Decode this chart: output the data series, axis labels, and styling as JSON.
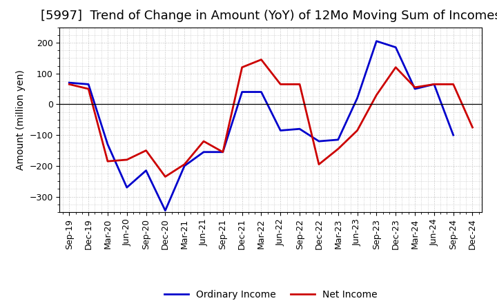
{
  "title": "[5997]  Trend of Change in Amount (YoY) of 12Mo Moving Sum of Incomes",
  "ylabel": "Amount (million yen)",
  "x_labels": [
    "Sep-19",
    "Dec-19",
    "Mar-20",
    "Jun-20",
    "Sep-20",
    "Dec-20",
    "Mar-21",
    "Jun-21",
    "Sep-21",
    "Dec-21",
    "Mar-22",
    "Jun-22",
    "Sep-22",
    "Dec-22",
    "Mar-23",
    "Jun-23",
    "Sep-23",
    "Dec-23",
    "Mar-24",
    "Jun-24",
    "Sep-24",
    "Dec-24"
  ],
  "ordinary_income": [
    70,
    65,
    -130,
    -270,
    -215,
    -345,
    -200,
    -155,
    -155,
    40,
    40,
    -85,
    -80,
    -120,
    -115,
    20,
    205,
    185,
    50,
    65,
    -100,
    null
  ],
  "net_income": [
    65,
    50,
    -185,
    -180,
    -150,
    -235,
    -195,
    -120,
    -155,
    120,
    145,
    65,
    65,
    -195,
    -145,
    -85,
    30,
    120,
    55,
    65,
    65,
    -75
  ],
  "ordinary_color": "#0000cc",
  "net_color": "#cc0000",
  "line_width": 2.0,
  "ylim": [
    -350,
    250
  ],
  "yticks": [
    -300,
    -200,
    -100,
    0,
    100,
    200
  ],
  "background_color": "#ffffff",
  "grid_color": "#bbbbbb",
  "legend_ordinary": "Ordinary Income",
  "legend_net": "Net Income",
  "title_fontsize": 13,
  "axis_fontsize": 10,
  "tick_fontsize": 9
}
